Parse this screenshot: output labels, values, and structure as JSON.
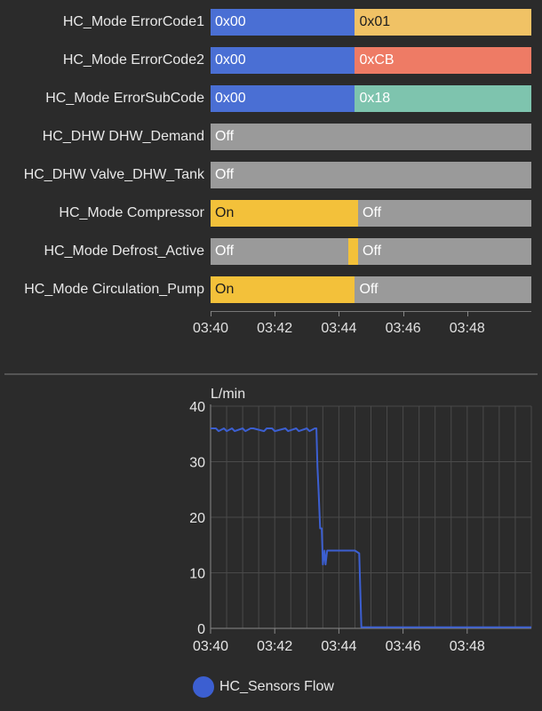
{
  "timeline": {
    "time_range": [
      "03:40",
      "03:50"
    ],
    "tick_labels": [
      "03:40",
      "03:42",
      "03:44",
      "03:46",
      "03:48"
    ],
    "rows": [
      {
        "label": "HC_Mode ErrorCode1",
        "segments": [
          {
            "start": "03:40",
            "end": "03:44.5",
            "value": "0x00",
            "color": "#4a6fd4"
          },
          {
            "start": "03:44.5",
            "end": "03:50",
            "value": "0x01",
            "color": "#f0c265"
          }
        ]
      },
      {
        "label": "HC_Mode ErrorCode2",
        "segments": [
          {
            "start": "03:40",
            "end": "03:44.5",
            "value": "0x00",
            "color": "#4a6fd4"
          },
          {
            "start": "03:44.5",
            "end": "03:50",
            "value": "0xCB",
            "color": "#ee7b65"
          }
        ]
      },
      {
        "label": "HC_Mode ErrorSubCode",
        "segments": [
          {
            "start": "03:40",
            "end": "03:44.5",
            "value": "0x00",
            "color": "#4a6fd4"
          },
          {
            "start": "03:44.5",
            "end": "03:50",
            "value": "0x18",
            "color": "#7ec4ae"
          }
        ]
      },
      {
        "label": "HC_DHW DHW_Demand",
        "segments": [
          {
            "start": "03:40",
            "end": "03:50",
            "value": "Off",
            "color": "#9a9a9a"
          }
        ]
      },
      {
        "label": "HC_DHW Valve_DHW_Tank",
        "segments": [
          {
            "start": "03:40",
            "end": "03:50",
            "value": "Off",
            "color": "#9a9a9a"
          }
        ]
      },
      {
        "label": "HC_Mode Compressor",
        "segments": [
          {
            "start": "03:40",
            "end": "03:44.6",
            "value": "On",
            "color": "#f3c13a"
          },
          {
            "start": "03:44.6",
            "end": "03:50",
            "value": "Off",
            "color": "#9a9a9a"
          }
        ]
      },
      {
        "label": "HC_Mode Defrost_Active",
        "segments": [
          {
            "start": "03:40",
            "end": "03:44.3",
            "value": "Off",
            "color": "#9a9a9a"
          },
          {
            "start": "03:44.3",
            "end": "03:44.6",
            "value": "",
            "color": "#f3c13a"
          },
          {
            "start": "03:44.6",
            "end": "03:50",
            "value": "Off",
            "color": "#9a9a9a"
          }
        ]
      },
      {
        "label": "HC_Mode Circulation_Pump",
        "segments": [
          {
            "start": "03:40",
            "end": "03:44.5",
            "value": "On",
            "color": "#f3c13a"
          },
          {
            "start": "03:44.5",
            "end": "03:50",
            "value": "Off",
            "color": "#9a9a9a"
          }
        ]
      }
    ]
  },
  "chart_data": {
    "type": "line",
    "ylabel": "L/min",
    "ylim": [
      0,
      40
    ],
    "yticks": [
      0,
      10,
      20,
      30,
      40
    ],
    "xlim": [
      "03:40",
      "03:50"
    ],
    "xticks": [
      "03:40",
      "03:42",
      "03:44",
      "03:46",
      "03:48"
    ],
    "grid": true,
    "legend_position": "bottom",
    "series": [
      {
        "name": "HC_Sensors Flow",
        "color": "#3c5fd1",
        "x": [
          "03:40:00",
          "03:40:10",
          "03:40:15",
          "03:40:25",
          "03:40:30",
          "03:40:40",
          "03:40:45",
          "03:41:00",
          "03:41:05",
          "03:41:15",
          "03:41:20",
          "03:41:40",
          "03:41:45",
          "03:41:55",
          "03:42:00",
          "03:42:20",
          "03:42:25",
          "03:42:40",
          "03:42:45",
          "03:43:00",
          "03:43:05",
          "03:43:15",
          "03:43:18",
          "03:43:20",
          "03:43:22",
          "03:43:25",
          "03:43:28",
          "03:43:30",
          "03:43:33",
          "03:43:35",
          "03:43:38",
          "03:43:42",
          "03:44:00",
          "03:44:30",
          "03:44:38",
          "03:44:42",
          "03:45:00",
          "03:46:00",
          "03:47:00",
          "03:48:00",
          "03:49:00",
          "03:50:00"
        ],
        "y": [
          36,
          36,
          35.5,
          36,
          35.5,
          36,
          35.5,
          36,
          35.5,
          36,
          36,
          35.5,
          36,
          36,
          35.5,
          36,
          35.5,
          36,
          35.5,
          36,
          35.5,
          36,
          36,
          29,
          25,
          18,
          18,
          11.5,
          14,
          11.5,
          14,
          14,
          14,
          14,
          13.5,
          0.2,
          0.2,
          0.2,
          0.2,
          0.2,
          0.2,
          0.2
        ]
      }
    ]
  }
}
